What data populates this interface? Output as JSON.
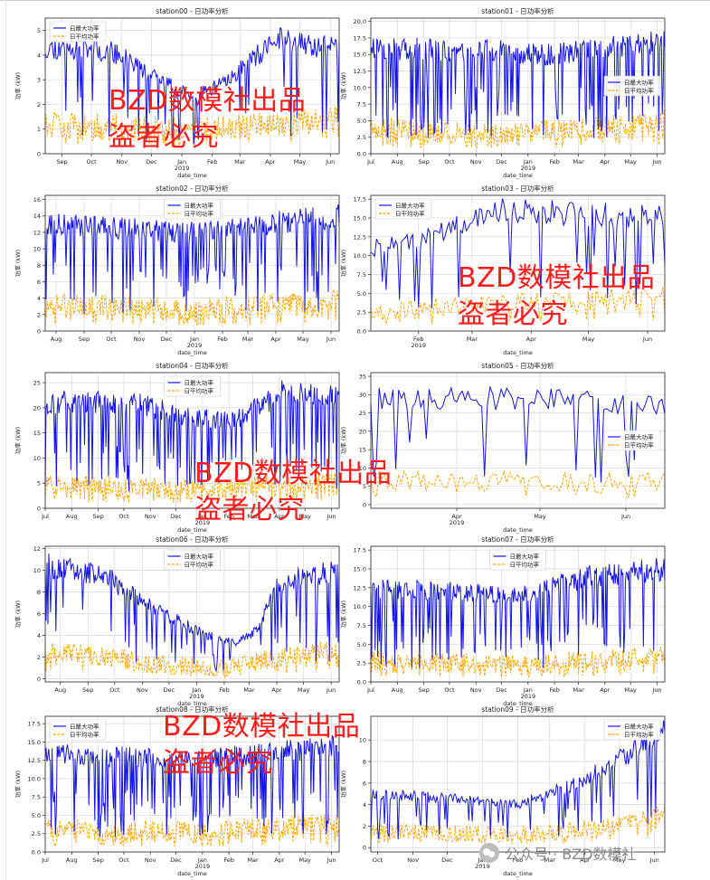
{
  "series_names": [
    "日最大功率",
    "日平均功率"
  ],
  "colors": {
    "max": "#1414f0",
    "avg": "#ffa500",
    "grid": "#d9d9d9",
    "axis": "#222222",
    "watermark": "#ff1a1a"
  },
  "watermark_lines": [
    "BZD数模社出品",
    "盗者必究"
  ],
  "footer": {
    "icon": "wechat-icon",
    "text": "公众号 · BZD数模社"
  },
  "chart_data": [
    {
      "type": "line",
      "title": "station00 - 日功率分析",
      "xlabel": "date_time",
      "ylabel": "功率 (kW)",
      "x_range": [
        "2018-08-15",
        "2019-06-10"
      ],
      "ylim": [
        0,
        5.5
      ],
      "yticks": [
        "0",
        "1",
        "2",
        "3",
        "4",
        "5"
      ],
      "xticks": [
        {
          "date": "2018-09-01",
          "label": "Sep"
        },
        {
          "date": "2018-10-01",
          "label": "Oct"
        },
        {
          "date": "2018-11-01",
          "label": "Nov"
        },
        {
          "date": "2018-12-01",
          "label": "Dec"
        },
        {
          "date": "2019-01-01",
          "label": "Jan",
          "sub": "2019"
        },
        {
          "date": "2019-02-01",
          "label": "Feb"
        },
        {
          "date": "2019-03-01",
          "label": "Mar"
        },
        {
          "date": "2019-04-01",
          "label": "Apr"
        },
        {
          "date": "2019-05-01",
          "label": "May"
        },
        {
          "date": "2019-06-01",
          "label": "Jun"
        }
      ],
      "legend": "top-left",
      "grid": true,
      "anchors_max": [
        [
          0,
          4.3
        ],
        [
          0.22,
          4.2
        ],
        [
          0.32,
          3.5
        ],
        [
          0.42,
          2.8
        ],
        [
          0.5,
          2.3
        ],
        [
          0.6,
          2.8
        ],
        [
          0.68,
          3.6
        ],
        [
          0.8,
          4.7
        ],
        [
          1,
          4.2
        ]
      ],
      "anchors_avg": [
        [
          0,
          1.2
        ],
        [
          0.5,
          0.9
        ],
        [
          0.68,
          1.1
        ],
        [
          1,
          1.4
        ]
      ],
      "avg_noise": 0.55,
      "dip_prob": 0.12,
      "seed": 11
    },
    {
      "type": "line",
      "title": "station01 - 日功率分析",
      "xlabel": "date_time",
      "ylabel": "功率 (kW)",
      "x_range": [
        "2018-07-01",
        "2019-06-10"
      ],
      "ylim": [
        0,
        20.5
      ],
      "yticks": [
        "0.0",
        "2.5",
        "5.0",
        "7.5",
        "10.0",
        "12.5",
        "15.0",
        "17.5",
        "20.0"
      ],
      "xticks": [
        {
          "date": "2018-07-01",
          "label": "Jul"
        },
        {
          "date": "2018-08-01",
          "label": "Aug"
        },
        {
          "date": "2018-09-01",
          "label": "Sep"
        },
        {
          "date": "2018-10-01",
          "label": "Oct"
        },
        {
          "date": "2018-11-01",
          "label": "Nov"
        },
        {
          "date": "2018-12-01",
          "label": "Dec"
        },
        {
          "date": "2019-01-01",
          "label": "Jan",
          "sub": "2019"
        },
        {
          "date": "2019-02-01",
          "label": "Feb"
        },
        {
          "date": "2019-03-01",
          "label": "Mar"
        },
        {
          "date": "2019-04-01",
          "label": "Apr"
        },
        {
          "date": "2019-05-01",
          "label": "May"
        },
        {
          "date": "2019-06-01",
          "label": "Jun"
        }
      ],
      "legend": "center-right",
      "grid": true,
      "anchors_max": [
        [
          0,
          16
        ],
        [
          0.45,
          15.5
        ],
        [
          0.6,
          15
        ],
        [
          1,
          17
        ]
      ],
      "anchors_avg": [
        [
          0,
          4
        ],
        [
          0.45,
          3
        ],
        [
          0.6,
          3.5
        ],
        [
          1,
          5
        ]
      ],
      "avg_noise": 1.6,
      "dip_prob": 0.2,
      "seed": 23
    },
    {
      "type": "line",
      "title": "station02 - 日功率分析",
      "xlabel": "date_time",
      "ylabel": "功率 (kW)",
      "x_range": [
        "2018-07-20",
        "2019-06-10"
      ],
      "ylim": [
        0,
        16.5
      ],
      "yticks": [
        "0",
        "2",
        "4",
        "6",
        "8",
        "10",
        "12",
        "14",
        "16"
      ],
      "xticks": [
        {
          "date": "2018-08-01",
          "label": "Aug"
        },
        {
          "date": "2018-09-01",
          "label": "Sep"
        },
        {
          "date": "2018-10-01",
          "label": "Oct"
        },
        {
          "date": "2018-11-01",
          "label": "Nov"
        },
        {
          "date": "2018-12-01",
          "label": "Dec"
        },
        {
          "date": "2019-01-01",
          "label": "Jan",
          "sub": "2019"
        },
        {
          "date": "2019-02-01",
          "label": "Feb"
        },
        {
          "date": "2019-03-01",
          "label": "Mar"
        },
        {
          "date": "2019-04-01",
          "label": "Apr"
        },
        {
          "date": "2019-05-01",
          "label": "May"
        },
        {
          "date": "2019-06-01",
          "label": "Jun"
        }
      ],
      "legend": "top-center",
      "grid": true,
      "anchors_max": [
        [
          0,
          13
        ],
        [
          0.5,
          12
        ],
        [
          1,
          14
        ]
      ],
      "anchors_avg": [
        [
          0,
          3.5
        ],
        [
          0.5,
          2.6
        ],
        [
          1,
          3.8
        ]
      ],
      "avg_noise": 1.3,
      "dip_prob": 0.22,
      "seed": 37
    },
    {
      "type": "line",
      "title": "station03 - 日功率分析",
      "xlabel": "date_time",
      "ylabel": "功率 (kW)",
      "x_range": [
        "2019-01-07",
        "2019-06-10"
      ],
      "ylim": [
        0,
        18
      ],
      "yticks": [
        "0.0",
        "2.5",
        "5.0",
        "7.5",
        "10.0",
        "12.5",
        "15.0",
        "17.5"
      ],
      "xticks": [
        {
          "date": "2019-02-01",
          "label": "Feb",
          "sub": "2019"
        },
        {
          "date": "2019-03-01",
          "label": "Mar"
        },
        {
          "date": "2019-04-01",
          "label": "Apr"
        },
        {
          "date": "2019-05-01",
          "label": "May"
        },
        {
          "date": "2019-06-01",
          "label": "Jun"
        }
      ],
      "legend": "top-left",
      "grid": true,
      "anchors_max": [
        [
          0,
          11
        ],
        [
          0.2,
          12.5
        ],
        [
          0.4,
          16
        ],
        [
          1,
          15
        ]
      ],
      "anchors_avg": [
        [
          0,
          2.2
        ],
        [
          0.3,
          3.5
        ],
        [
          1,
          4.8
        ]
      ],
      "avg_noise": 1.2,
      "dip_prob": 0.14,
      "seed": 41
    },
    {
      "type": "line",
      "title": "station04 - 日功率分析",
      "xlabel": "date_time",
      "ylabel": "功率 (kW)",
      "x_range": [
        "2018-07-01",
        "2019-06-10"
      ],
      "ylim": [
        0,
        27
      ],
      "yticks": [
        "0",
        "5",
        "10",
        "15",
        "20",
        "25"
      ],
      "xticks": [
        {
          "date": "2018-07-01",
          "label": "Jul"
        },
        {
          "date": "2018-08-01",
          "label": "Aug"
        },
        {
          "date": "2018-09-01",
          "label": "Sep"
        },
        {
          "date": "2018-10-01",
          "label": "Oct"
        },
        {
          "date": "2018-11-01",
          "label": "Nov"
        },
        {
          "date": "2018-12-01",
          "label": "Dec"
        },
        {
          "date": "2019-01-01",
          "label": "Jan",
          "sub": "2019"
        },
        {
          "date": "2019-02-01",
          "label": "Feb"
        },
        {
          "date": "2019-03-01",
          "label": "Mar"
        },
        {
          "date": "2019-04-01",
          "label": "Apr"
        },
        {
          "date": "2019-05-01",
          "label": "May"
        },
        {
          "date": "2019-06-01",
          "label": "Jun"
        }
      ],
      "legend": "top-center",
      "grid": true,
      "anchors_max": [
        [
          0,
          21
        ],
        [
          0.3,
          21
        ],
        [
          0.5,
          18
        ],
        [
          0.65,
          17.5
        ],
        [
          0.8,
          23
        ],
        [
          1,
          22
        ]
      ],
      "anchors_avg": [
        [
          0,
          5
        ],
        [
          0.5,
          4
        ],
        [
          1,
          5.5
        ]
      ],
      "avg_noise": 1.8,
      "dip_prob": 0.18,
      "seed": 53
    },
    {
      "type": "line",
      "title": "station05 - 日功率分析",
      "xlabel": "date_time",
      "ylabel": "功率 (kW)",
      "x_range": [
        "2019-03-01",
        "2019-06-15"
      ],
      "ylim": [
        -1,
        36
      ],
      "yticks": [
        "0",
        "5",
        "10",
        "15",
        "20",
        "25",
        "30",
        "35"
      ],
      "xticks": [
        {
          "date": "2019-04-01",
          "label": "Apr",
          "sub": "2019"
        },
        {
          "date": "2019-05-01",
          "label": "May"
        },
        {
          "date": "2019-06-01",
          "label": "Jun"
        }
      ],
      "legend": "center-right",
      "grid": true,
      "anchors_max": [
        [
          0,
          29
        ],
        [
          0.5,
          29
        ],
        [
          1,
          27
        ]
      ],
      "anchors_avg": [
        [
          0,
          6.5
        ],
        [
          1,
          6
        ]
      ],
      "avg_noise": 3,
      "dip_prob": 0.15,
      "seed": 61
    },
    {
      "type": "line",
      "title": "station06 - 日功率分析",
      "xlabel": "date_time",
      "ylabel": "功率 (kW)",
      "x_range": [
        "2018-07-15",
        "2019-06-10"
      ],
      "ylim": [
        -0.3,
        12.2
      ],
      "yticks": [
        "0",
        "2",
        "4",
        "6",
        "8",
        "10",
        "12"
      ],
      "xticks": [
        {
          "date": "2018-08-01",
          "label": "Aug"
        },
        {
          "date": "2018-09-01",
          "label": "Sep"
        },
        {
          "date": "2018-10-01",
          "label": "Oct"
        },
        {
          "date": "2018-11-01",
          "label": "Nov"
        },
        {
          "date": "2018-12-01",
          "label": "Dec"
        },
        {
          "date": "2019-01-01",
          "label": "Jan",
          "sub": "2019"
        },
        {
          "date": "2019-02-01",
          "label": "Feb"
        },
        {
          "date": "2019-03-01",
          "label": "Mar"
        },
        {
          "date": "2019-04-01",
          "label": "Apr"
        },
        {
          "date": "2019-05-01",
          "label": "May"
        },
        {
          "date": "2019-06-01",
          "label": "Jun"
        }
      ],
      "legend": "top-center",
      "grid": true,
      "anchors_max": [
        [
          0,
          10.5
        ],
        [
          0.2,
          9.5
        ],
        [
          0.4,
          6
        ],
        [
          0.55,
          4
        ],
        [
          0.65,
          3.2
        ],
        [
          0.72,
          4.5
        ],
        [
          0.8,
          9
        ],
        [
          1,
          10
        ]
      ],
      "anchors_avg": [
        [
          0,
          2.6
        ],
        [
          0.4,
          1.4
        ],
        [
          0.6,
          0.9
        ],
        [
          0.8,
          2
        ],
        [
          1,
          2.8
        ]
      ],
      "avg_noise": 0.9,
      "dip_prob": 0.13,
      "seed": 67
    },
    {
      "type": "line",
      "title": "station07 - 日功率分析",
      "xlabel": "date_time",
      "ylabel": "功率 (kW)",
      "x_range": [
        "2018-07-01",
        "2019-06-10"
      ],
      "ylim": [
        0,
        18
      ],
      "yticks": [
        "0.0",
        "2.5",
        "5.0",
        "7.5",
        "10.0",
        "12.5",
        "15.0",
        "17.5"
      ],
      "xticks": [
        {
          "date": "2018-07-01",
          "label": "Jul"
        },
        {
          "date": "2018-08-01",
          "label": "Aug"
        },
        {
          "date": "2018-09-01",
          "label": "Sep"
        },
        {
          "date": "2018-10-01",
          "label": "Oct"
        },
        {
          "date": "2018-11-01",
          "label": "Nov"
        },
        {
          "date": "2018-12-01",
          "label": "Dec"
        },
        {
          "date": "2019-01-01",
          "label": "Jan",
          "sub": "2019"
        },
        {
          "date": "2019-02-01",
          "label": "Feb"
        },
        {
          "date": "2019-03-01",
          "label": "Mar"
        },
        {
          "date": "2019-04-01",
          "label": "Apr"
        },
        {
          "date": "2019-05-01",
          "label": "May"
        },
        {
          "date": "2019-06-01",
          "label": "Jun"
        }
      ],
      "legend": "top-center",
      "grid": true,
      "anchors_max": [
        [
          0,
          12.5
        ],
        [
          0.5,
          11.5
        ],
        [
          0.75,
          14
        ],
        [
          1,
          15
        ]
      ],
      "anchors_avg": [
        [
          0,
          3
        ],
        [
          0.5,
          2.4
        ],
        [
          1,
          3.6
        ]
      ],
      "avg_noise": 1.2,
      "dip_prob": 0.2,
      "seed": 73
    },
    {
      "type": "line",
      "title": "station08 - 日功率分析",
      "xlabel": "date_time",
      "ylabel": "功率 (kW)",
      "x_range": [
        "2018-07-01",
        "2019-06-10"
      ],
      "ylim": [
        0,
        18.5
      ],
      "yticks": [
        "0.0",
        "2.5",
        "5.0",
        "7.5",
        "10.0",
        "12.5",
        "15.0",
        "17.5"
      ],
      "xticks": [
        {
          "date": "2018-07-01",
          "label": "Jul"
        },
        {
          "date": "2018-08-01",
          "label": "Aug"
        },
        {
          "date": "2018-09-01",
          "label": "Sep"
        },
        {
          "date": "2018-10-01",
          "label": "Oct"
        },
        {
          "date": "2018-11-01",
          "label": "Nov"
        },
        {
          "date": "2018-12-01",
          "label": "Dec"
        },
        {
          "date": "2019-01-01",
          "label": "Jan",
          "sub": "2019"
        },
        {
          "date": "2019-02-01",
          "label": "Feb"
        },
        {
          "date": "2019-03-01",
          "label": "Mar"
        },
        {
          "date": "2019-04-01",
          "label": "Apr"
        },
        {
          "date": "2019-05-01",
          "label": "May"
        },
        {
          "date": "2019-06-01",
          "label": "Jun"
        }
      ],
      "legend": "top-left",
      "grid": true,
      "anchors_max": [
        [
          0,
          13.5
        ],
        [
          0.5,
          12.5
        ],
        [
          1,
          14.5
        ]
      ],
      "anchors_avg": [
        [
          0,
          3.3
        ],
        [
          0.5,
          2.8
        ],
        [
          1,
          4
        ]
      ],
      "avg_noise": 1.3,
      "dip_prob": 0.22,
      "seed": 83
    },
    {
      "type": "line",
      "title": "station09 - 日功率分析",
      "xlabel": "date_time",
      "ylabel": "功率 (kW)",
      "x_range": [
        "2018-09-25",
        "2019-06-10"
      ],
      "ylim": [
        -0.4,
        12.2
      ],
      "yticks": [
        "0",
        "2",
        "4",
        "6",
        "8",
        "10"
      ],
      "xticks": [
        {
          "date": "2018-10-01",
          "label": "Oct"
        },
        {
          "date": "2018-11-01",
          "label": "Nov"
        },
        {
          "date": "2018-12-01",
          "label": "Dec"
        },
        {
          "date": "2019-01-01",
          "label": "Jan",
          "sub": "2019"
        },
        {
          "date": "2019-02-01",
          "label": "Feb"
        },
        {
          "date": "2019-03-01",
          "label": "Mar"
        },
        {
          "date": "2019-04-01",
          "label": "Apr"
        },
        {
          "date": "2019-05-01",
          "label": "May"
        },
        {
          "date": "2019-06-01",
          "label": "Jun"
        }
      ],
      "legend": "top-right",
      "grid": true,
      "anchors_max": [
        [
          0,
          5
        ],
        [
          0.3,
          4.5
        ],
        [
          0.5,
          4
        ],
        [
          0.7,
          6
        ],
        [
          0.9,
          9
        ],
        [
          1,
          11
        ]
      ],
      "anchors_avg": [
        [
          0,
          1.6
        ],
        [
          0.5,
          1.1
        ],
        [
          0.8,
          2
        ],
        [
          1,
          3.2
        ]
      ],
      "avg_noise": 0.8,
      "dip_prob": 0.15,
      "seed": 97
    }
  ]
}
